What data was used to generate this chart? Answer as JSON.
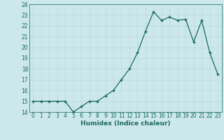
{
  "x": [
    0,
    1,
    2,
    3,
    4,
    5,
    6,
    7,
    8,
    9,
    10,
    11,
    12,
    13,
    14,
    15,
    16,
    17,
    18,
    19,
    20,
    21,
    22,
    23
  ],
  "y": [
    15,
    15,
    15,
    15,
    15,
    14,
    14.5,
    15,
    15,
    15.5,
    16,
    17,
    18,
    19.5,
    21.5,
    23.3,
    22.5,
    22.8,
    22.5,
    22.6,
    20.5,
    22.5,
    19.5,
    17.5
  ],
  "xlabel": "Humidex (Indice chaleur)",
  "ylim": [
    14,
    24
  ],
  "xlim": [
    -0.5,
    23.5
  ],
  "yticks": [
    14,
    15,
    16,
    17,
    18,
    19,
    20,
    21,
    22,
    23,
    24
  ],
  "xticks": [
    0,
    1,
    2,
    3,
    4,
    5,
    6,
    7,
    8,
    9,
    10,
    11,
    12,
    13,
    14,
    15,
    16,
    17,
    18,
    19,
    20,
    21,
    22,
    23
  ],
  "line_color": "#1a6b5a",
  "marker_color": "#1a6b5a",
  "bg_color": "#cce8ec",
  "grid_color": "#b8d8dc",
  "axis_color": "#1a6b5a",
  "label_color": "#1a6b5a",
  "tick_fontsize": 5.5,
  "xlabel_fontsize": 6.5
}
